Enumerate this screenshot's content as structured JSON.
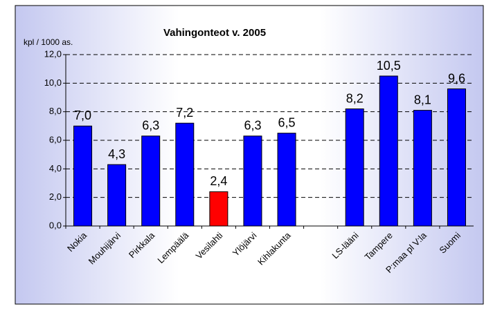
{
  "chart_data": {
    "type": "bar",
    "title": "Vahingonteot v. 2005",
    "y_label": "kpl / 1000 as.",
    "categories": [
      "Nokia",
      "Mouhijärvi",
      "Pirkkala",
      "Lempäälä",
      "Vesilahti",
      "Ylöjärvi",
      "Kihlakunta",
      null,
      "LS-lääni",
      "Tampere",
      "P:maa pl V:la",
      "Suomi"
    ],
    "values": [
      7.0,
      4.3,
      6.3,
      7.2,
      2.4,
      6.3,
      6.5,
      null,
      8.2,
      10.5,
      8.1,
      9.6
    ],
    "value_labels": [
      "7,0",
      "4,3",
      "6,3",
      "7,2",
      "2,4",
      "6,3",
      "6,5",
      null,
      "8,2",
      "10,5",
      "8,1",
      "9,6"
    ],
    "colors": [
      "#0000ff",
      "#0000ff",
      "#0000ff",
      "#0000ff",
      "#ff0000",
      "#0000ff",
      "#0000ff",
      null,
      "#0000ff",
      "#0000ff",
      "#0000ff",
      "#0000ff"
    ],
    "ylim": [
      0,
      12
    ],
    "yticks": [
      {
        "value": 0,
        "label": "0,0"
      },
      {
        "value": 2,
        "label": "2,0"
      },
      {
        "value": 4,
        "label": "4,0"
      },
      {
        "value": 6,
        "label": "6,0"
      },
      {
        "value": 8,
        "label": "8,0"
      },
      {
        "value": 10,
        "label": "10,0"
      },
      {
        "value": 12,
        "label": "12,0"
      }
    ],
    "grid": true
  }
}
